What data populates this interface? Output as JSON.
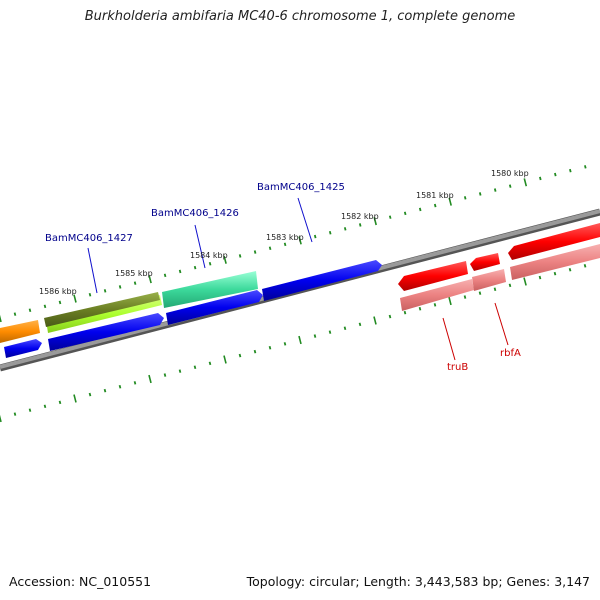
{
  "title": "Burkholderia ambifaria MC40-6 chromosome 1, complete genome",
  "footer": {
    "accession_text": "Accession: NC_010551",
    "stats_text": "Topology: circular; Length: 3,443,583 bp; Genes: 3,147"
  },
  "scale_labels": [
    "1586 kbp",
    "1585 kbp",
    "1584 kbp",
    "1583 kbp",
    "1582 kbp",
    "1581 kbp",
    "1580 kbp"
  ],
  "gene_labels": [
    {
      "id": "BamMC406_1427",
      "text": "BamMC406_1427",
      "color": "#00008b"
    },
    {
      "id": "BamMC406_1426",
      "text": "BamMC406_1426",
      "color": "#00008b"
    },
    {
      "id": "BamMC406_1425",
      "text": "BamMC406_1425",
      "color": "#00008b"
    },
    {
      "id": "truB",
      "text": "truB",
      "color": "#cc0000"
    },
    {
      "id": "rbfA",
      "text": "rbfA",
      "color": "#cc0000"
    }
  ],
  "colors": {
    "backbone": "#808080",
    "tick": "#228b22",
    "cds_forward": "#0000ee",
    "cds_reverse": "#ff0000",
    "cds_reverse_light": "#ef8a8a",
    "orange_feature": "#ff8c00",
    "olive_feature": "#6b8e23",
    "lime_feature": "#adff2f",
    "teal_feature": "#3cd99b"
  }
}
